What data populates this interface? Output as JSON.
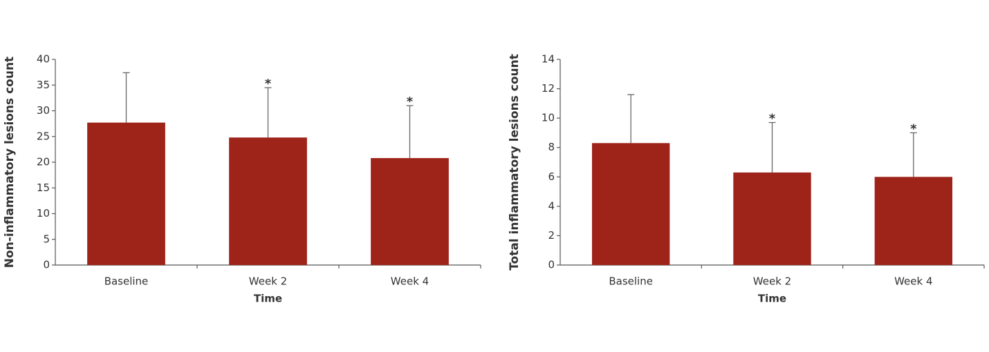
{
  "chart_data": [
    {
      "type": "bar",
      "x_label": "Time",
      "y_label": "Non-inflammatory lesions count",
      "categories": [
        "Baseline",
        "Week 2",
        "Week 4"
      ],
      "values": [
        27.7,
        24.8,
        20.8
      ],
      "errors": [
        9.7,
        9.7,
        10.2
      ],
      "significance_markers": [
        null,
        "*",
        "*"
      ],
      "color": "#9e2419",
      "ylim": [
        0,
        40
      ],
      "yticks": [
        0,
        5,
        10,
        15,
        20,
        25,
        30,
        35,
        40
      ]
    },
    {
      "type": "bar",
      "x_label": "Time",
      "y_label": "Total inflammatory lesions count",
      "categories": [
        "Baseline",
        "Week 2",
        "Week 4"
      ],
      "values": [
        8.3,
        6.3,
        6.0
      ],
      "errors": [
        3.3,
        3.4,
        3.0
      ],
      "significance_markers": [
        null,
        "*",
        "*"
      ],
      "color": "#9e2419",
      "ylim": [
        0,
        14
      ],
      "yticks": [
        0,
        2,
        4,
        6,
        8,
        10,
        12,
        14
      ]
    }
  ]
}
